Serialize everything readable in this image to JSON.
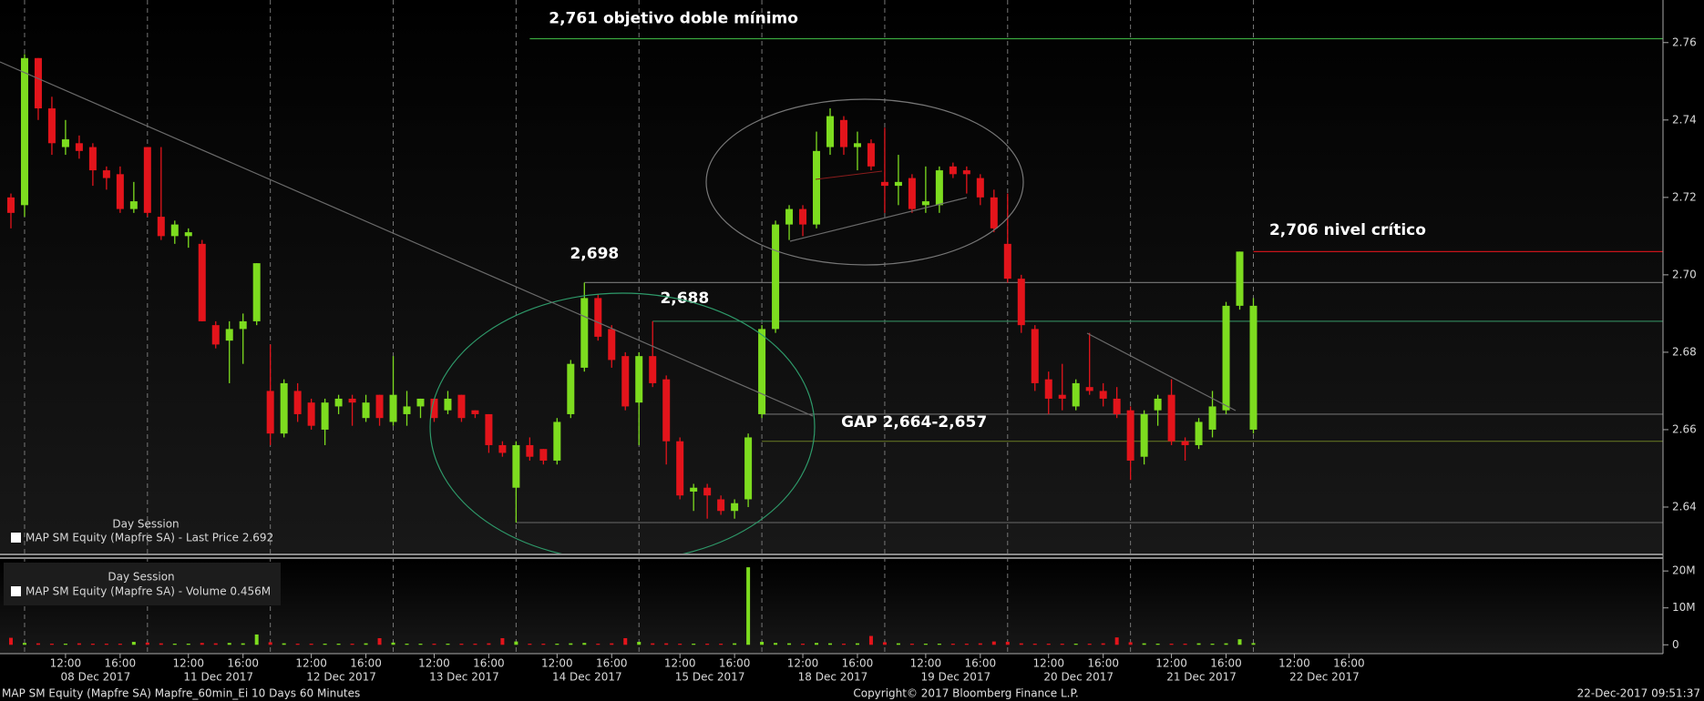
{
  "chart_data": [
    {
      "type": "candlestick",
      "legend": {
        "title": "Day Session",
        "label": "MAP SM Equity (Mapfre SA) - Last Price 2.692"
      },
      "up_color": "#7ddc1f",
      "down_color": "#e3141b",
      "open": [
        2.72,
        2.718,
        2.756,
        2.743,
        2.733,
        2.734,
        2.733,
        2.727,
        2.726,
        2.717,
        2.733,
        2.715,
        2.71,
        2.71,
        2.708,
        2.687,
        2.683,
        2.686,
        2.688,
        2.67,
        2.659,
        2.67,
        2.667,
        2.66,
        2.666,
        2.668,
        2.663,
        2.669,
        2.662,
        2.664,
        2.666,
        2.668,
        2.665,
        2.669,
        2.665,
        2.664,
        2.656,
        2.645,
        2.656,
        2.655,
        2.652,
        2.664,
        2.676,
        2.694,
        2.686,
        2.679,
        2.667,
        2.679,
        2.673,
        2.657,
        2.644,
        2.645,
        2.642,
        2.639,
        2.642,
        2.664,
        2.686,
        2.713,
        2.717,
        2.713,
        2.733,
        2.74,
        2.733,
        2.734,
        2.724,
        2.723,
        2.725,
        2.718,
        2.718,
        2.728,
        2.727,
        2.725,
        2.72,
        2.708,
        2.699,
        2.686,
        2.673,
        2.669,
        2.666,
        2.671,
        2.67,
        2.668,
        2.665,
        2.653,
        2.665,
        2.669,
        2.657,
        2.656,
        2.66,
        2.665,
        2.692,
        2.66
      ],
      "high": [
        2.721,
        2.757,
        2.756,
        2.746,
        2.74,
        2.736,
        2.734,
        2.728,
        2.728,
        2.724,
        2.733,
        2.733,
        2.714,
        2.712,
        2.709,
        2.688,
        2.688,
        2.69,
        2.703,
        2.682,
        2.673,
        2.672,
        2.668,
        2.668,
        2.669,
        2.669,
        2.669,
        2.669,
        2.679,
        2.67,
        2.668,
        2.668,
        2.67,
        2.669,
        2.665,
        2.664,
        2.657,
        2.657,
        2.658,
        2.655,
        2.663,
        2.678,
        2.698,
        2.695,
        2.687,
        2.68,
        2.68,
        2.688,
        2.674,
        2.658,
        2.646,
        2.646,
        2.643,
        2.642,
        2.659,
        2.687,
        2.714,
        2.718,
        2.718,
        2.737,
        2.743,
        2.741,
        2.737,
        2.735,
        2.738,
        2.731,
        2.726,
        2.728,
        2.728,
        2.729,
        2.728,
        2.726,
        2.722,
        2.721,
        2.7,
        2.687,
        2.675,
        2.677,
        2.673,
        2.685,
        2.672,
        2.671,
        2.666,
        2.665,
        2.669,
        2.673,
        2.658,
        2.663,
        2.67,
        2.693,
        2.706,
        2.694
      ],
      "low": [
        2.712,
        2.715,
        2.74,
        2.731,
        2.731,
        2.73,
        2.723,
        2.722,
        2.716,
        2.716,
        2.715,
        2.709,
        2.708,
        2.707,
        2.688,
        2.681,
        2.672,
        2.677,
        2.687,
        2.656,
        2.658,
        2.662,
        2.66,
        2.656,
        2.664,
        2.661,
        2.662,
        2.661,
        2.661,
        2.661,
        2.663,
        2.662,
        2.664,
        2.662,
        2.663,
        2.654,
        2.653,
        2.636,
        2.652,
        2.651,
        2.651,
        2.663,
        2.675,
        2.683,
        2.676,
        2.665,
        2.656,
        2.671,
        2.651,
        2.642,
        2.639,
        2.637,
        2.638,
        2.637,
        2.64,
        2.663,
        2.685,
        2.709,
        2.71,
        2.712,
        2.731,
        2.731,
        2.727,
        2.727,
        2.716,
        2.718,
        2.716,
        2.716,
        2.716,
        2.725,
        2.721,
        2.718,
        2.711,
        2.698,
        2.685,
        2.67,
        2.664,
        2.665,
        2.665,
        2.669,
        2.666,
        2.663,
        2.647,
        2.651,
        2.661,
        2.656,
        2.652,
        2.655,
        2.658,
        2.664,
        2.691,
        2.659
      ],
      "close": [
        2.716,
        2.756,
        2.743,
        2.734,
        2.735,
        2.732,
        2.727,
        2.725,
        2.717,
        2.719,
        2.716,
        2.71,
        2.713,
        2.711,
        2.688,
        2.682,
        2.686,
        2.688,
        2.703,
        2.659,
        2.672,
        2.664,
        2.661,
        2.667,
        2.668,
        2.667,
        2.667,
        2.663,
        2.669,
        2.666,
        2.668,
        2.663,
        2.668,
        2.663,
        2.664,
        2.656,
        2.654,
        2.656,
        2.653,
        2.652,
        2.662,
        2.677,
        2.694,
        2.684,
        2.678,
        2.666,
        2.679,
        2.672,
        2.657,
        2.643,
        2.645,
        2.643,
        2.639,
        2.641,
        2.658,
        2.686,
        2.713,
        2.717,
        2.713,
        2.732,
        2.741,
        2.733,
        2.734,
        2.728,
        2.723,
        2.724,
        2.717,
        2.719,
        2.727,
        2.726,
        2.726,
        2.72,
        2.712,
        2.699,
        2.687,
        2.672,
        2.668,
        2.668,
        2.672,
        2.67,
        2.668,
        2.664,
        2.652,
        2.664,
        2.668,
        2.657,
        2.656,
        2.662,
        2.666,
        2.692,
        2.706,
        2.692
      ],
      "xlim": [
        -0.8,
        121.0
      ],
      "xticks": [
        {
          "value": 4,
          "label": "12:00"
        },
        {
          "value": 8,
          "label": "16:00"
        },
        {
          "value": 13,
          "label": "12:00"
        },
        {
          "value": 17,
          "label": "16:00"
        },
        {
          "value": 22,
          "label": "12:00"
        },
        {
          "value": 26,
          "label": "16:00"
        },
        {
          "value": 31,
          "label": "12:00"
        },
        {
          "value": 35,
          "label": "16:00"
        },
        {
          "value": 40,
          "label": "12:00"
        },
        {
          "value": 44,
          "label": "16:00"
        },
        {
          "value": 49,
          "label": "12:00"
        },
        {
          "value": 53,
          "label": "16:00"
        },
        {
          "value": 58,
          "label": "12:00"
        },
        {
          "value": 62,
          "label": "16:00"
        },
        {
          "value": 67,
          "label": "12:00"
        },
        {
          "value": 71,
          "label": "16:00"
        },
        {
          "value": 76,
          "label": "12:00"
        },
        {
          "value": 80,
          "label": "16:00"
        },
        {
          "value": 85,
          "label": "12:00"
        },
        {
          "value": 89,
          "label": "16:00"
        },
        {
          "value": 94,
          "label": "12:00"
        },
        {
          "value": 98,
          "label": "16:00"
        }
      ],
      "days": [
        {
          "value": 1,
          "label": "08 Dec 2017"
        },
        {
          "value": 10,
          "label": "11 Dec 2017"
        },
        {
          "value": 19,
          "label": "12 Dec 2017"
        },
        {
          "value": 28,
          "label": "13 Dec 2017"
        },
        {
          "value": 37,
          "label": "14 Dec 2017"
        },
        {
          "value": 46,
          "label": "15 Dec 2017"
        },
        {
          "value": 55,
          "label": "18 Dec 2017"
        },
        {
          "value": 64,
          "label": "19 Dec 2017"
        },
        {
          "value": 73,
          "label": "20 Dec 2017"
        },
        {
          "value": 82,
          "label": "21 Dec 2017"
        },
        {
          "value": 91,
          "label": "22 Dec 2017"
        }
      ],
      "ylim": [
        2.628,
        2.771
      ],
      "yticks": [
        2.64,
        2.66,
        2.68,
        {
          "value": 2.7,
          "label": "2.70"
        },
        2.72,
        2.74,
        2.76
      ],
      "levels": [
        {
          "value": 2.761,
          "label": "2,761 objetivo doble mínimo",
          "color": "#3aa83f"
        },
        {
          "value": 2.706,
          "label": "2,706 nivel crítico",
          "color": "#c8141b"
        },
        {
          "value": 2.698,
          "label": "2,698",
          "color": "#6d6d6d"
        },
        {
          "value": 2.688,
          "label": "2,688",
          "color": "#2e7d56"
        },
        {
          "value": 2.664,
          "color": "#6d6d6d"
        },
        {
          "value": 2.657,
          "color": "#5f6f22"
        },
        {
          "value": 2.636,
          "color": "#5a5a5a"
        }
      ],
      "annotations": [
        {
          "text": "GAP 2,664-2,657"
        }
      ]
    },
    {
      "type": "bar",
      "legend": {
        "title": "Day Session",
        "label": "MAP SM Equity (Mapfre SA) - Volume 0.456M"
      },
      "values": [
        1900000,
        500000,
        400000,
        300000,
        300000,
        400000,
        300000,
        300000,
        300000,
        800000,
        600000,
        400000,
        300000,
        300000,
        500000,
        400000,
        500000,
        400000,
        2800000,
        700000,
        400000,
        300000,
        300000,
        300000,
        300000,
        300000,
        400000,
        1800000,
        600000,
        300000,
        300000,
        300000,
        300000,
        300000,
        300000,
        400000,
        1800000,
        900000,
        300000,
        300000,
        300000,
        400000,
        500000,
        300000,
        400000,
        1800000,
        800000,
        400000,
        400000,
        300000,
        300000,
        300000,
        300000,
        400000,
        21000000,
        800000,
        500000,
        400000,
        300000,
        500000,
        400000,
        300000,
        400000,
        2400000,
        700000,
        400000,
        300000,
        300000,
        300000,
        300000,
        300000,
        400000,
        900000,
        800000,
        400000,
        300000,
        300000,
        300000,
        300000,
        300000,
        400000,
        2000000,
        700000,
        400000,
        300000,
        300000,
        300000,
        400000,
        300000,
        400000,
        1500000,
        456000
      ],
      "xlim": [
        -0.8,
        121.0
      ],
      "ylim": [
        -2400000,
        23000000
      ],
      "yticks": [
        0,
        {
          "value": 10000000,
          "label": "10M"
        },
        {
          "value": 20000000,
          "label": "20M"
        }
      ]
    }
  ],
  "footer": {
    "left": "MAP SM Equity (Mapfre SA) Mapfre_60min_Ei 10 Days 60 Minutes",
    "center": "Copyright© 2017 Bloomberg Finance L.P.",
    "right": "22-Dec-2017 09:51:37"
  }
}
